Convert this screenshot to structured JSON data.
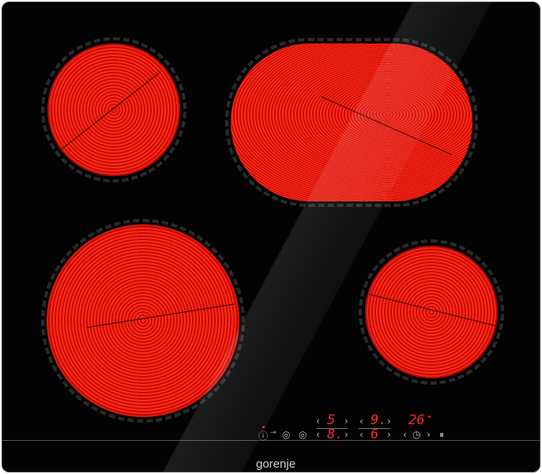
{
  "brand": "gorenje",
  "colors": {
    "glass": "#030303",
    "heat": "#ff2a1a",
    "display": "#ff2a2a"
  },
  "controls": {
    "power_icon": "power-icon",
    "lock_icon": "lock-icon",
    "boost_icon": "boost-icon",
    "dual_icon": "dual-zone-icon",
    "timer_icon": "timer-icon",
    "pause_icon": "pause-icon",
    "prev": "‹",
    "next": "›",
    "zone1_top": "5",
    "zone1_bottom": "8.",
    "zone2_top": "9.",
    "zone2_bottom": "6",
    "timer": "26"
  }
}
